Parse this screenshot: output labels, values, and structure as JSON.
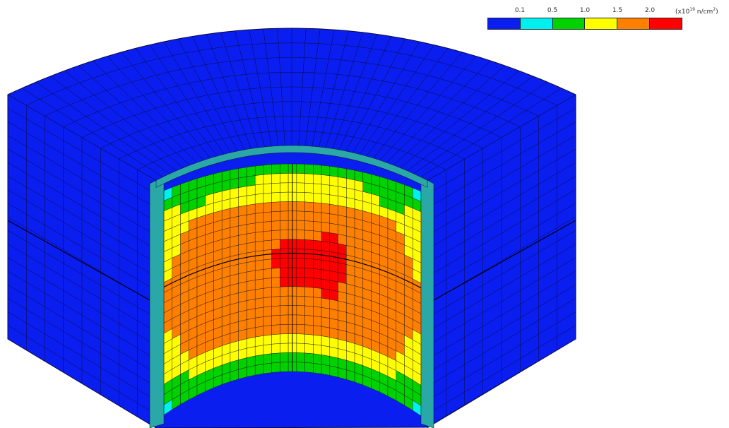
{
  "legend": {
    "ticks": [
      "0.1",
      "0.5",
      "1.0",
      "1.5",
      "2.0"
    ],
    "unit_prefix": "(x10",
    "unit_exp": "19",
    "unit_mid": " n/cm",
    "unit_exp2": "2",
    "unit_suffix": ")",
    "colors": [
      "#0a1ef0",
      "#00f0f0",
      "#00d200",
      "#ffff00",
      "#ff8000",
      "#ff0000"
    ]
  },
  "chart_data": {
    "type": "heatmap",
    "description_free": true,
    "bins": [
      {
        "range": "< 0.1",
        "color": "#0a1ef0"
      },
      {
        "range": "0.1-0.5",
        "color": "#00f0f0"
      },
      {
        "range": "0.5-1.0",
        "color": "#00d200"
      },
      {
        "range": "1.0-1.5",
        "color": "#ffff00"
      },
      {
        "range": "1.5-2.0",
        "color": "#ff8000"
      },
      {
        "range": "> 2.0",
        "color": "#ff0000"
      }
    ],
    "inner_surface_levels": [
      [
        1,
        2,
        2,
        2,
        2,
        2,
        2,
        2,
        2,
        2,
        2,
        2,
        2,
        2,
        2,
        2,
        2,
        2,
        2,
        2,
        2,
        2,
        2,
        2,
        2,
        2,
        2,
        2,
        2,
        2,
        1
      ],
      [
        2,
        2,
        2,
        2,
        2,
        2,
        2,
        2,
        2,
        2,
        2,
        3,
        3,
        3,
        3,
        3,
        3,
        3,
        3,
        3,
        3,
        3,
        3,
        3,
        2,
        2,
        2,
        2,
        2,
        2,
        2
      ],
      [
        3,
        3,
        2,
        2,
        2,
        3,
        3,
        3,
        3,
        3,
        3,
        3,
        3,
        3,
        3,
        3,
        3,
        3,
        3,
        3,
        3,
        3,
        3,
        3,
        3,
        3,
        2,
        2,
        2,
        3,
        3
      ],
      [
        3,
        3,
        3,
        3,
        3,
        3,
        3,
        3,
        3,
        3,
        3,
        3,
        3,
        3,
        3,
        3,
        3,
        3,
        3,
        3,
        3,
        3,
        3,
        3,
        3,
        3,
        3,
        3,
        3,
        3,
        3
      ],
      [
        3,
        3,
        3,
        4,
        4,
        4,
        4,
        4,
        4,
        4,
        4,
        4,
        4,
        4,
        4,
        4,
        4,
        4,
        4,
        4,
        4,
        4,
        4,
        4,
        4,
        4,
        4,
        4,
        3,
        3,
        3
      ],
      [
        3,
        3,
        4,
        4,
        4,
        4,
        4,
        4,
        4,
        4,
        4,
        4,
        4,
        4,
        4,
        4,
        4,
        4,
        4,
        4,
        4,
        4,
        4,
        4,
        4,
        4,
        4,
        4,
        4,
        3,
        3
      ],
      [
        3,
        3,
        4,
        4,
        4,
        4,
        4,
        4,
        4,
        4,
        4,
        4,
        4,
        4,
        4,
        4,
        4,
        4,
        4,
        4,
        4,
        4,
        4,
        4,
        4,
        4,
        4,
        4,
        4,
        3,
        3
      ],
      [
        3,
        4,
        4,
        4,
        4,
        4,
        4,
        4,
        4,
        4,
        4,
        4,
        4,
        4,
        4,
        4,
        4,
        4,
        4,
        5,
        5,
        4,
        4,
        4,
        4,
        4,
        4,
        4,
        4,
        4,
        3
      ],
      [
        3,
        4,
        4,
        4,
        4,
        4,
        4,
        4,
        4,
        4,
        4,
        4,
        4,
        4,
        5,
        5,
        5,
        5,
        5,
        5,
        5,
        5,
        4,
        4,
        4,
        4,
        4,
        4,
        4,
        4,
        3
      ],
      [
        4,
        4,
        4,
        4,
        4,
        4,
        4,
        4,
        4,
        4,
        4,
        4,
        4,
        5,
        5,
        5,
        5,
        5,
        5,
        5,
        5,
        5,
        4,
        4,
        4,
        4,
        4,
        4,
        4,
        4,
        4
      ],
      [
        4,
        4,
        4,
        4,
        4,
        4,
        4,
        4,
        4,
        4,
        4,
        4,
        4,
        5,
        5,
        5,
        5,
        5,
        5,
        5,
        5,
        5,
        4,
        4,
        4,
        4,
        4,
        4,
        4,
        4,
        4
      ],
      [
        4,
        4,
        4,
        4,
        4,
        4,
        4,
        4,
        4,
        4,
        4,
        4,
        4,
        4,
        5,
        5,
        5,
        5,
        5,
        5,
        5,
        5,
        4,
        4,
        4,
        4,
        4,
        4,
        4,
        4,
        4
      ],
      [
        4,
        4,
        4,
        4,
        4,
        4,
        4,
        4,
        4,
        4,
        4,
        4,
        4,
        4,
        5,
        5,
        5,
        5,
        5,
        5,
        5,
        4,
        4,
        4,
        4,
        4,
        4,
        4,
        4,
        4,
        4
      ],
      [
        4,
        4,
        4,
        4,
        4,
        4,
        4,
        4,
        4,
        4,
        4,
        4,
        4,
        4,
        4,
        4,
        4,
        4,
        4,
        5,
        5,
        4,
        4,
        4,
        4,
        4,
        4,
        4,
        4,
        4,
        4
      ],
      [
        3,
        4,
        4,
        4,
        4,
        4,
        4,
        4,
        4,
        4,
        4,
        4,
        4,
        4,
        4,
        4,
        4,
        4,
        4,
        4,
        4,
        4,
        4,
        4,
        4,
        4,
        4,
        4,
        4,
        4,
        3
      ],
      [
        3,
        3,
        4,
        4,
        4,
        4,
        4,
        4,
        4,
        4,
        4,
        4,
        4,
        4,
        4,
        4,
        4,
        4,
        4,
        4,
        4,
        4,
        4,
        4,
        4,
        4,
        4,
        4,
        4,
        3,
        3
      ],
      [
        3,
        3,
        4,
        4,
        4,
        4,
        4,
        4,
        4,
        4,
        4,
        4,
        4,
        4,
        4,
        4,
        4,
        4,
        4,
        4,
        4,
        4,
        4,
        4,
        4,
        4,
        4,
        4,
        4,
        3,
        3
      ],
      [
        3,
        3,
        3,
        4,
        4,
        4,
        4,
        4,
        4,
        4,
        4,
        4,
        4,
        4,
        4,
        4,
        4,
        4,
        4,
        4,
        4,
        4,
        4,
        4,
        4,
        4,
        4,
        4,
        3,
        3,
        3
      ],
      [
        3,
        3,
        3,
        3,
        3,
        3,
        3,
        3,
        3,
        3,
        3,
        3,
        3,
        3,
        3,
        3,
        3,
        3,
        3,
        3,
        3,
        3,
        3,
        3,
        3,
        3,
        3,
        3,
        3,
        3,
        3
      ],
      [
        2,
        2,
        2,
        3,
        3,
        3,
        3,
        3,
        3,
        3,
        3,
        3,
        3,
        3,
        3,
        3,
        3,
        3,
        3,
        3,
        3,
        3,
        3,
        3,
        3,
        3,
        3,
        3,
        2,
        2,
        2
      ],
      [
        2,
        2,
        2,
        2,
        2,
        2,
        2,
        2,
        2,
        2,
        2,
        2,
        2,
        2,
        2,
        2,
        2,
        2,
        2,
        2,
        2,
        2,
        2,
        2,
        2,
        2,
        2,
        2,
        2,
        2,
        2
      ],
      [
        1,
        2,
        2,
        2,
        2,
        2,
        2,
        2,
        2,
        2,
        2,
        2,
        2,
        2,
        2,
        2,
        2,
        2,
        2,
        2,
        2,
        2,
        2,
        2,
        2,
        2,
        2,
        2,
        2,
        2,
        1
      ]
    ]
  }
}
